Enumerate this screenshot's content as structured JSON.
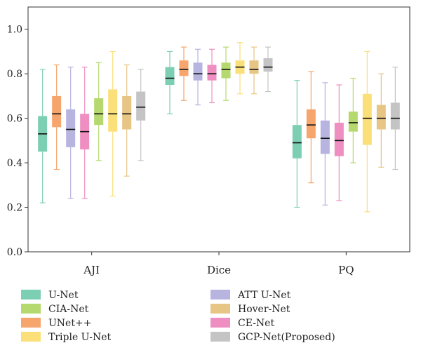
{
  "chart_data": {
    "type": "box",
    "title": "",
    "xlabel": "",
    "ylabel": "",
    "ylim": [
      0.0,
      1.1
    ],
    "yticks": [
      0.0,
      0.2,
      0.4,
      0.6,
      0.8,
      1.0
    ],
    "ytick_labels": [
      "0.0",
      "0.2",
      "0.4",
      "0.6",
      "0.8",
      "1.0"
    ],
    "grid": false,
    "legend_position": "bottom",
    "categories": [
      "AJI",
      "Dice",
      "PQ"
    ],
    "series": [
      {
        "name": "U-Net",
        "color": "#7dcfb4",
        "boxes": [
          {
            "min": 0.22,
            "q1": 0.45,
            "median": 0.53,
            "q3": 0.61,
            "max": 0.82
          },
          {
            "min": 0.62,
            "q1": 0.75,
            "median": 0.78,
            "q3": 0.83,
            "max": 0.9
          },
          {
            "min": 0.2,
            "q1": 0.42,
            "median": 0.49,
            "q3": 0.57,
            "max": 0.77
          }
        ]
      },
      {
        "name": "UNet++",
        "color": "#f6a66c",
        "boxes": [
          {
            "min": 0.37,
            "q1": 0.56,
            "median": 0.62,
            "q3": 0.7,
            "max": 0.84
          },
          {
            "min": 0.68,
            "q1": 0.79,
            "median": 0.82,
            "q3": 0.86,
            "max": 0.92
          },
          {
            "min": 0.31,
            "q1": 0.51,
            "median": 0.57,
            "q3": 0.64,
            "max": 0.81
          }
        ]
      },
      {
        "name": "ATT U-Net",
        "color": "#b7b4e0",
        "boxes": [
          {
            "min": 0.24,
            "q1": 0.47,
            "median": 0.55,
            "q3": 0.64,
            "max": 0.83
          },
          {
            "min": 0.66,
            "q1": 0.77,
            "median": 0.8,
            "q3": 0.85,
            "max": 0.91
          },
          {
            "min": 0.21,
            "q1": 0.44,
            "median": 0.51,
            "q3": 0.59,
            "max": 0.76
          }
        ]
      },
      {
        "name": "CE-Net",
        "color": "#ef8ec0",
        "boxes": [
          {
            "min": 0.24,
            "q1": 0.46,
            "median": 0.54,
            "q3": 0.62,
            "max": 0.83
          },
          {
            "min": 0.67,
            "q1": 0.77,
            "median": 0.8,
            "q3": 0.84,
            "max": 0.91
          },
          {
            "min": 0.23,
            "q1": 0.43,
            "median": 0.5,
            "q3": 0.58,
            "max": 0.75
          }
        ]
      },
      {
        "name": "CIA-Net",
        "color": "#b5d96e",
        "boxes": [
          {
            "min": 0.41,
            "q1": 0.57,
            "median": 0.62,
            "q3": 0.69,
            "max": 0.85
          },
          {
            "min": 0.68,
            "q1": 0.78,
            "median": 0.82,
            "q3": 0.85,
            "max": 0.92
          },
          {
            "min": 0.4,
            "q1": 0.54,
            "median": 0.58,
            "q3": 0.63,
            "max": 0.78
          }
        ]
      },
      {
        "name": "Triple U-Net",
        "color": "#fbe07a",
        "boxes": [
          {
            "min": 0.25,
            "q1": 0.54,
            "median": 0.62,
            "q3": 0.73,
            "max": 0.9
          },
          {
            "min": 0.71,
            "q1": 0.8,
            "median": 0.83,
            "q3": 0.86,
            "max": 0.94
          },
          {
            "min": 0.18,
            "q1": 0.48,
            "median": 0.6,
            "q3": 0.71,
            "max": 0.9
          }
        ]
      },
      {
        "name": "Hover-Net",
        "color": "#e7c585",
        "boxes": [
          {
            "min": 0.34,
            "q1": 0.55,
            "median": 0.62,
            "q3": 0.7,
            "max": 0.84
          },
          {
            "min": 0.71,
            "q1": 0.8,
            "median": 0.82,
            "q3": 0.86,
            "max": 0.92
          },
          {
            "min": 0.38,
            "q1": 0.55,
            "median": 0.6,
            "q3": 0.66,
            "max": 0.8
          }
        ]
      },
      {
        "name": "GCP-Net(Proposed)",
        "color": "#c4c4c4",
        "boxes": [
          {
            "min": 0.41,
            "q1": 0.59,
            "median": 0.65,
            "q3": 0.72,
            "max": 0.82
          },
          {
            "min": 0.72,
            "q1": 0.81,
            "median": 0.83,
            "q3": 0.87,
            "max": 0.92
          },
          {
            "min": 0.37,
            "q1": 0.55,
            "median": 0.6,
            "q3": 0.67,
            "max": 0.83
          }
        ]
      }
    ],
    "legend": {
      "left_column": [
        "U-Net",
        "CIA-Net",
        "UNet++",
        "Triple U-Net"
      ],
      "right_column": [
        "ATT U-Net",
        "Hover-Net",
        "CE-Net",
        "GCP-Net(Proposed)"
      ]
    }
  }
}
